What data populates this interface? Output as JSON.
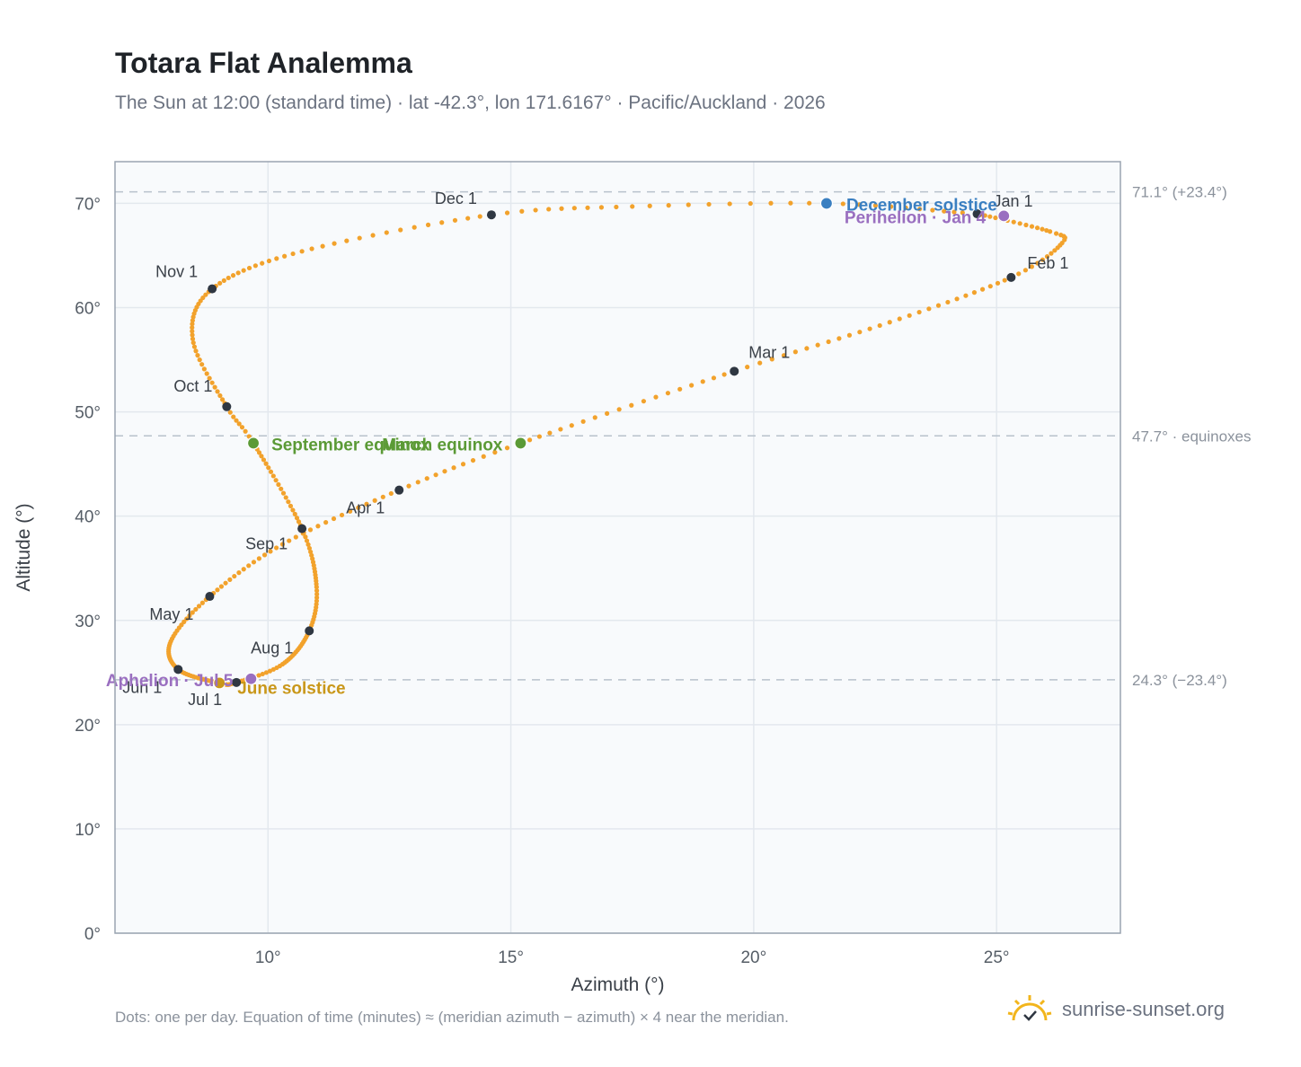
{
  "title": "Totara Flat Analemma",
  "subtitle": "The Sun at 12:00 (standard time) · lat -42.3°, lon 171.6167° · Pacific/Auckland · 2026",
  "footnote": "Dots: one per day. Equation of time (minutes) ≈ (meridian azimuth − azimuth) × 4 near the meridian.",
  "brand": {
    "text": "sunrise-sunset.org",
    "icon": "sun-check-icon"
  },
  "colors": {
    "curve": "#f2a22c",
    "month_marker": "#2f3742",
    "solstice_december": "#3a7fc1",
    "solstice_june": "#c99719",
    "equinox": "#5b9a36",
    "apsis": "#9a6fc0",
    "reference_line": "#b8c2cc",
    "plot_background": "#f8fafc",
    "grid": "#e3e8ee",
    "axis_text": "#555d66"
  },
  "chart_data": {
    "type": "scatter",
    "xlabel": "Azimuth (°)",
    "ylabel": "Altitude (°)",
    "xlim": [
      6.85,
      27.55
    ],
    "ylim": [
      0,
      74
    ],
    "x_ticks": [
      {
        "value": 10,
        "label": "10°"
      },
      {
        "value": 15,
        "label": "15°"
      },
      {
        "value": 20,
        "label": "20°"
      },
      {
        "value": 25,
        "label": "25°"
      }
    ],
    "y_ticks": [
      {
        "value": 0,
        "label": "0°"
      },
      {
        "value": 10,
        "label": "10°"
      },
      {
        "value": 20,
        "label": "20°"
      },
      {
        "value": 30,
        "label": "30°"
      },
      {
        "value": 40,
        "label": "40°"
      },
      {
        "value": 50,
        "label": "50°"
      },
      {
        "value": 60,
        "label": "60°"
      },
      {
        "value": 70,
        "label": "70°"
      }
    ],
    "grid": true,
    "reference_lines": [
      {
        "y": 71.1,
        "label": "71.1° (+23.4°)"
      },
      {
        "y": 47.7,
        "label": "47.7° · equinoxes"
      },
      {
        "y": 24.3,
        "label": "24.3° (−23.4°)"
      }
    ],
    "daily_path_points": [
      {
        "day": 1,
        "az": 24.6,
        "alt": 69.0
      },
      {
        "day": 15,
        "az": 26.1,
        "alt": 67.3
      },
      {
        "day": 21,
        "az": 26.35,
        "alt": 66.2
      },
      {
        "day": 32,
        "az": 25.3,
        "alt": 62.9
      },
      {
        "day": 46,
        "az": 22.8,
        "alt": 58.6
      },
      {
        "day": 60,
        "az": 19.6,
        "alt": 53.9
      },
      {
        "day": 79,
        "az": 15.2,
        "alt": 47.0
      },
      {
        "day": 91,
        "az": 12.7,
        "alt": 42.5
      },
      {
        "day": 106,
        "az": 10.3,
        "alt": 37.3
      },
      {
        "day": 121,
        "az": 8.8,
        "alt": 32.3
      },
      {
        "day": 136,
        "az": 8.0,
        "alt": 28.0
      },
      {
        "day": 152,
        "az": 8.15,
        "alt": 25.3
      },
      {
        "day": 172,
        "az": 9.0,
        "alt": 24.0
      },
      {
        "day": 182,
        "az": 9.35,
        "alt": 24.05
      },
      {
        "day": 196,
        "az": 10.3,
        "alt": 25.8
      },
      {
        "day": 213,
        "az": 10.85,
        "alt": 29.0
      },
      {
        "day": 227,
        "az": 11.0,
        "alt": 33.2
      },
      {
        "day": 244,
        "az": 10.7,
        "alt": 38.8
      },
      {
        "day": 266,
        "az": 9.7,
        "alt": 47.0
      },
      {
        "day": 274,
        "az": 9.15,
        "alt": 50.5
      },
      {
        "day": 290,
        "az": 8.45,
        "alt": 57.0
      },
      {
        "day": 305,
        "az": 8.85,
        "alt": 61.8
      },
      {
        "day": 320,
        "az": 10.7,
        "alt": 65.4
      },
      {
        "day": 335,
        "az": 14.6,
        "alt": 68.9
      },
      {
        "day": 345,
        "az": 17.5,
        "alt": 69.7
      },
      {
        "day": 355,
        "az": 21.5,
        "alt": 70.0
      },
      {
        "day": 365,
        "az": 24.3,
        "alt": 69.1
      }
    ],
    "month_markers": [
      {
        "label": "Jan 1",
        "az": 24.6,
        "alt": 69.0
      },
      {
        "label": "Feb 1",
        "az": 25.3,
        "alt": 62.9
      },
      {
        "label": "Mar 1",
        "az": 19.6,
        "alt": 53.9
      },
      {
        "label": "Apr 1",
        "az": 12.7,
        "alt": 42.5
      },
      {
        "label": "May 1",
        "az": 8.8,
        "alt": 32.3
      },
      {
        "label": "Jun 1",
        "az": 8.15,
        "alt": 25.3
      },
      {
        "label": "Jul 1",
        "az": 9.35,
        "alt": 24.05
      },
      {
        "label": "Aug 1",
        "az": 10.85,
        "alt": 29.0
      },
      {
        "label": "Sep 1",
        "az": 10.7,
        "alt": 38.8
      },
      {
        "label": "Oct 1",
        "az": 9.15,
        "alt": 50.5
      },
      {
        "label": "Nov 1",
        "az": 8.85,
        "alt": 61.8
      },
      {
        "label": "Dec 1",
        "az": 14.6,
        "alt": 68.9
      }
    ],
    "events": [
      {
        "label": "December solstice",
        "kind": "solstice_december",
        "az": 21.5,
        "alt": 70.0
      },
      {
        "label": "June solstice",
        "kind": "solstice_june",
        "az": 9.0,
        "alt": 24.0
      },
      {
        "label": "March equinox",
        "kind": "equinox",
        "az": 15.2,
        "alt": 47.0
      },
      {
        "label": "September equinox",
        "kind": "equinox",
        "az": 9.7,
        "alt": 47.0
      },
      {
        "label": "Perihelion · Jan 4",
        "kind": "apsis",
        "az": 25.15,
        "alt": 68.8
      },
      {
        "label": "Aphelion · Jul 5",
        "kind": "apsis",
        "az": 9.65,
        "alt": 24.4
      }
    ]
  }
}
